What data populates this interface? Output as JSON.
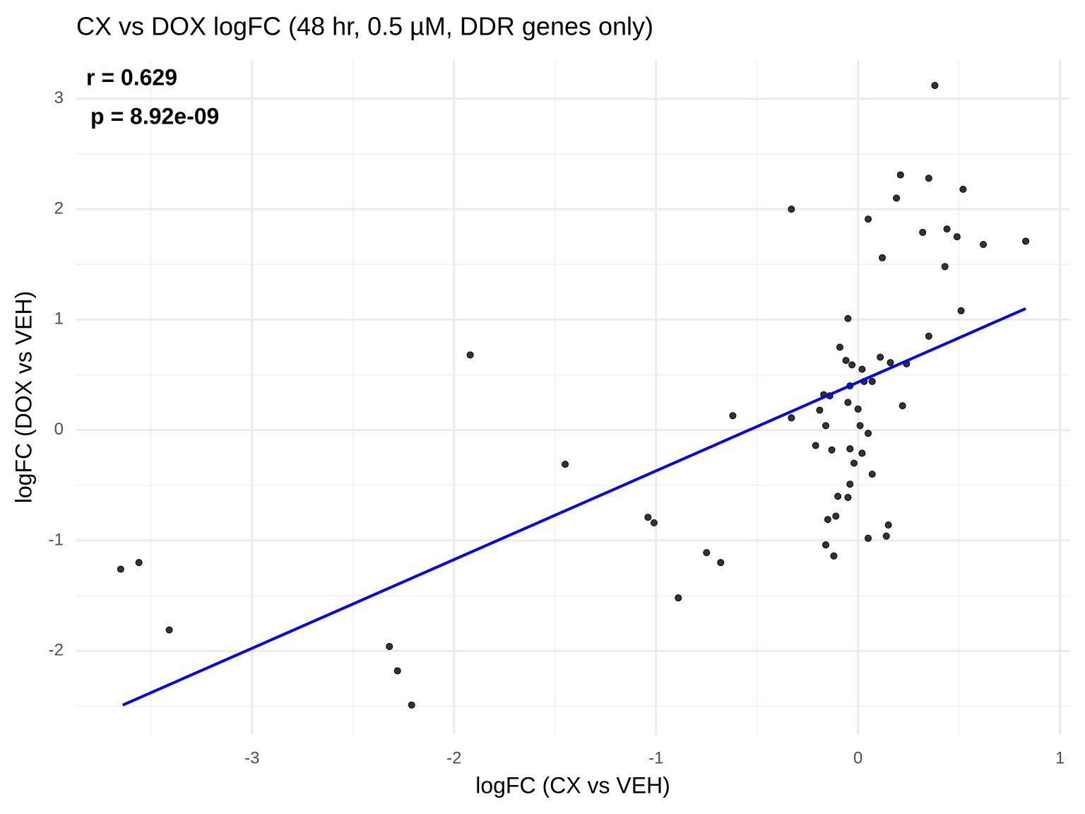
{
  "chart_data": {
    "type": "scatter",
    "title": "CX vs DOX logFC (48 hr, 0.5 µM, DDR genes only)",
    "x_label": "logFC (CX vs VEH)",
    "y_label": "logFC (DOX vs VEH)",
    "annotations": [
      "r = 0.629",
      "p = 8.92e-09"
    ],
    "x": [
      -3.65,
      -3.56,
      -3.41,
      -2.32,
      -2.28,
      -2.21,
      -1.92,
      -1.45,
      -1.04,
      -1.01,
      -0.89,
      -0.75,
      -0.68,
      -0.62,
      -0.33,
      -0.33,
      -0.21,
      -0.19,
      -0.17,
      -0.16,
      -0.16,
      -0.15,
      -0.14,
      -0.13,
      -0.12,
      -0.11,
      -0.1,
      -0.09,
      -0.06,
      -0.05,
      -0.05,
      -0.04,
      -0.05,
      -0.04,
      -0.04,
      -0.03,
      -0.02,
      0.0,
      0.01,
      0.02,
      0.02,
      0.03,
      0.05,
      0.05,
      0.05,
      0.07,
      0.07,
      0.11,
      0.12,
      0.14,
      0.15,
      0.16,
      0.19,
      0.21,
      0.22,
      0.24,
      0.32,
      0.35,
      0.35,
      0.38,
      0.43,
      0.44,
      0.49,
      0.51,
      0.52,
      0.62,
      0.83
    ],
    "values": [
      -1.26,
      -1.2,
      -1.81,
      -1.96,
      -2.18,
      -2.49,
      0.68,
      -0.31,
      -0.79,
      -0.84,
      -1.52,
      -1.11,
      -1.2,
      0.13,
      2.0,
      0.11,
      -0.14,
      0.18,
      0.32,
      0.04,
      -1.04,
      -0.81,
      0.31,
      -0.18,
      -1.14,
      -0.78,
      -0.6,
      0.75,
      0.63,
      0.25,
      1.01,
      -0.17,
      -0.61,
      -0.49,
      0.4,
      0.59,
      -0.3,
      0.19,
      0.04,
      -0.21,
      0.55,
      0.44,
      1.91,
      -0.03,
      -0.98,
      0.44,
      -0.4,
      0.66,
      1.56,
      -0.96,
      -0.86,
      0.61,
      2.1,
      2.31,
      0.22,
      0.6,
      1.79,
      2.28,
      0.85,
      3.12,
      1.48,
      1.82,
      1.75,
      1.08,
      2.18,
      1.68,
      1.71
    ],
    "color": "#333333",
    "trend_line": {
      "x": [
        -3.64,
        0.83
      ],
      "y": [
        -2.49,
        1.1
      ],
      "color": "#0000ff"
    },
    "xlim": [
      -3.87,
      1.05
    ],
    "ylim": [
      -2.76,
      3.35
    ],
    "xticks": [
      -3,
      -2,
      -1,
      0,
      1
    ],
    "yticks": [
      -2,
      -1,
      0,
      1,
      2,
      3
    ],
    "grid": true,
    "minor_grid": true
  }
}
